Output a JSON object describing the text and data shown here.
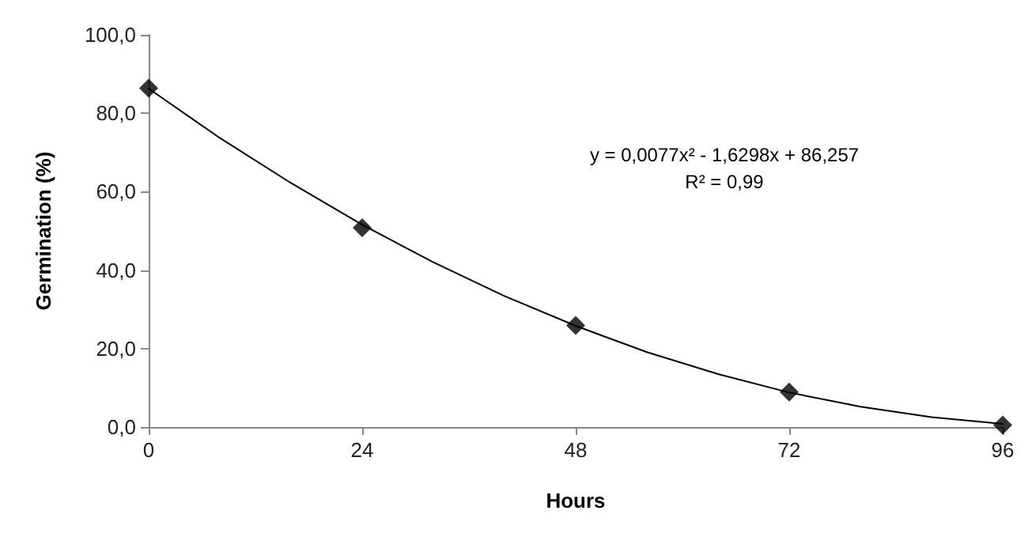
{
  "chart_data": {
    "type": "scatter",
    "xlabel": "Hours",
    "ylabel": "Germination (%)",
    "annotations": [
      "y = 0,0077x² - 1,6298x + 86,257",
      "R² = 0,99"
    ],
    "xlim": [
      0,
      96
    ],
    "xticks": [
      0,
      24,
      48,
      72,
      96
    ],
    "ylim": [
      0,
      100
    ],
    "yticks": [
      {
        "value": 0,
        "label": "0,0"
      },
      {
        "value": 20,
        "label": "20,0"
      },
      {
        "value": 40,
        "label": "40,0"
      },
      {
        "value": 60,
        "label": "60,0"
      },
      {
        "value": 80,
        "label": "80,0"
      },
      {
        "value": 100,
        "label": "100,0"
      }
    ],
    "grid": false,
    "series": [
      {
        "marker": "diamond",
        "color": "#000000",
        "x": [
          0,
          24,
          48,
          72,
          96
        ],
        "values": [
          86.4,
          50.8,
          25.9,
          8.9,
          0.5
        ]
      },
      {
        "type": "line",
        "marker": "none",
        "line_style": "solid",
        "color": "#000000",
        "x": [
          0,
          8,
          16,
          24,
          32,
          40,
          48,
          56,
          64,
          72,
          80,
          88,
          96
        ],
        "values": [
          86.3,
          73.7,
          62.2,
          51.6,
          42.0,
          33.4,
          25.8,
          19.1,
          13.5,
          8.8,
          5.2,
          2.5,
          0.8
        ]
      }
    ]
  }
}
